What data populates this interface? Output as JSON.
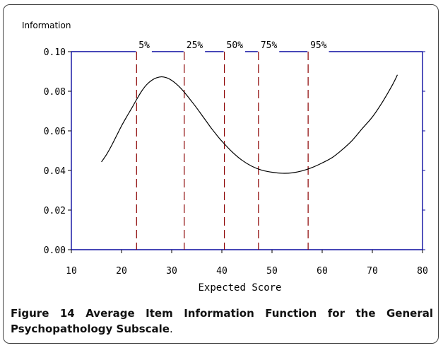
{
  "chart_data": {
    "type": "line",
    "ylabel": "Information",
    "xlabel": "Expected Score",
    "xlim": [
      10,
      80
    ],
    "ylim": [
      0,
      0.1
    ],
    "x_ticks": [
      "10",
      "20",
      "30",
      "40",
      "50",
      "60",
      "70",
      "80"
    ],
    "x_tick_values": [
      10,
      20,
      30,
      40,
      50,
      60,
      70,
      80
    ],
    "y_ticks": [
      "0.00",
      "0.02",
      "0.04",
      "0.06",
      "0.08",
      "0.10"
    ],
    "y_tick_values": [
      0,
      0.02,
      0.04,
      0.06,
      0.08,
      0.1
    ],
    "series": [
      {
        "x": [
          16,
          17,
          18,
          19,
          20,
          21,
          22,
          23,
          24,
          25,
          26,
          27,
          28,
          29,
          30,
          31,
          32,
          33,
          34,
          35,
          36,
          37,
          38,
          39,
          40,
          42,
          44,
          46,
          48,
          50,
          52,
          54,
          56,
          58,
          60,
          62,
          64,
          66,
          68,
          70,
          72,
          74,
          75
        ],
        "y": [
          0.0443,
          0.048,
          0.0525,
          0.0575,
          0.0625,
          0.067,
          0.0713,
          0.0758,
          0.08,
          0.0833,
          0.0855,
          0.0868,
          0.0873,
          0.0868,
          0.0855,
          0.0835,
          0.081,
          0.078,
          0.0748,
          0.0715,
          0.068,
          0.0645,
          0.061,
          0.0578,
          0.0548,
          0.0495,
          0.0452,
          0.0421,
          0.0401,
          0.0391,
          0.0386,
          0.0388,
          0.0398,
          0.0415,
          0.0438,
          0.0465,
          0.0505,
          0.0552,
          0.0612,
          0.067,
          0.0745,
          0.0832,
          0.0883
        ],
        "color": "#000000"
      }
    ],
    "percentile_lines": [
      {
        "label": "5%",
        "x": 23.0
      },
      {
        "label": "25%",
        "x": 32.5
      },
      {
        "label": "50%",
        "x": 40.5
      },
      {
        "label": "75%",
        "x": 47.3
      },
      {
        "label": "95%",
        "x": 57.2
      }
    ],
    "colors": {
      "frame": "#0b0ba0",
      "percentile": "#8b0000",
      "curve": "#000000"
    }
  },
  "caption": {
    "label": "Figure 14",
    "text": " Average Item Information Function for the General Psychopathology Subscale",
    "end": "."
  }
}
